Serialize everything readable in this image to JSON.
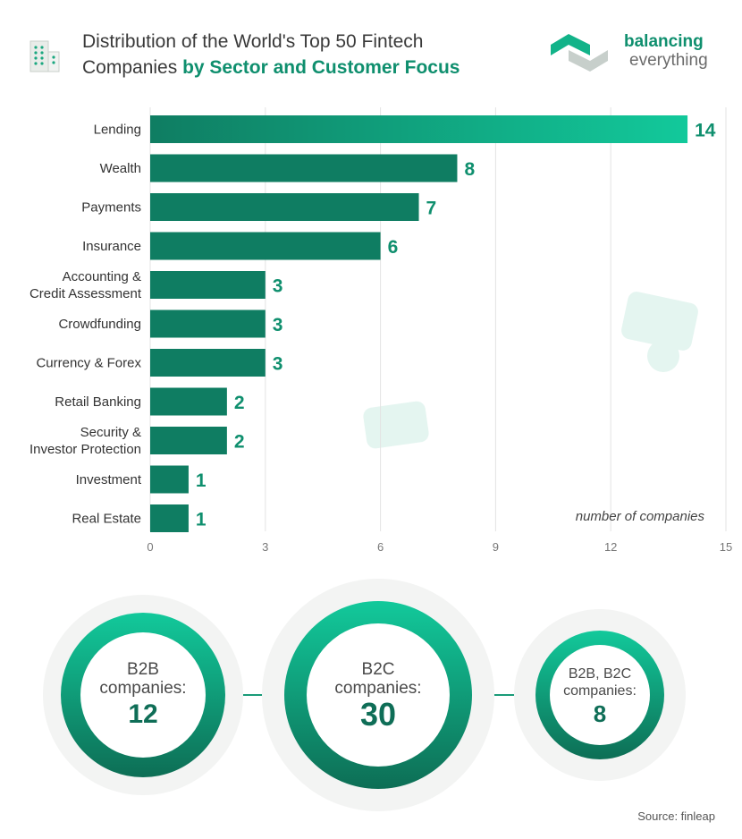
{
  "header": {
    "title_line1": "Distribution of the World's Top 50 Fintech",
    "title_line2_plain": "Companies ",
    "title_line2_accent": "by Sector and Customer Focus",
    "brand_line1": "balancing",
    "brand_line2": "everything"
  },
  "chart_data": {
    "type": "bar",
    "orientation": "horizontal",
    "categories": [
      "Lending",
      "Wealth",
      "Payments",
      "Insurance",
      "Accounting &\nCredit Assessment",
      "Crowdfunding",
      "Currency & Forex",
      "Retail Banking",
      "Security &\nInvestor Protection",
      "Investment",
      "Real Estate"
    ],
    "values": [
      14,
      8,
      7,
      6,
      3,
      3,
      3,
      2,
      2,
      1,
      1
    ],
    "x_ticks": [
      0,
      3,
      6,
      9,
      12,
      15
    ],
    "xlim": [
      0,
      15
    ],
    "xlabel": "number of companies",
    "grid": true,
    "colors": {
      "bar_dark": "#0f7d62",
      "bar_light": "#12c99b",
      "label": "#0f8f6e",
      "grid": "#e3e3e3"
    }
  },
  "customer_focus": [
    {
      "label_line1": "B2B",
      "label_line2": "companies:",
      "value": "12"
    },
    {
      "label_line1": "B2C",
      "label_line2": "companies:",
      "value": "30"
    },
    {
      "label_line1": "B2B, B2C",
      "label_line2": "companies:",
      "value": "8"
    }
  ],
  "source": "Source: finleap"
}
